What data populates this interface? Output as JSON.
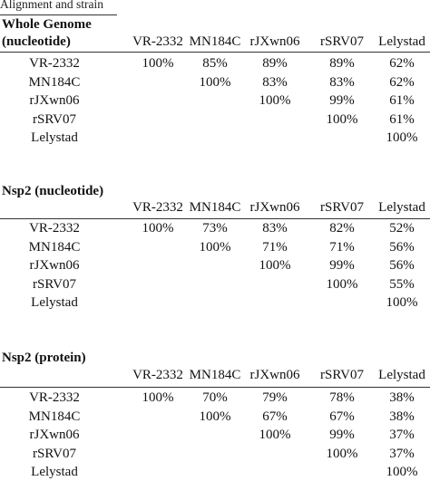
{
  "caption": "Alignment and strain",
  "columns": [
    "VR-2332",
    "MN184C",
    "rJXwn06",
    "rSRV07",
    "Lelystad"
  ],
  "sections": [
    {
      "title_lines": [
        "Whole Genome",
        "(nucleotide)"
      ],
      "rows": [
        {
          "label": "VR-2332",
          "values": [
            "100%",
            "85%",
            "89%",
            "89%",
            "62%"
          ]
        },
        {
          "label": "MN184C",
          "values": [
            "",
            "100%",
            "83%",
            "83%",
            "62%"
          ]
        },
        {
          "label": "rJXwn06",
          "values": [
            "",
            "",
            "100%",
            "99%",
            "61%"
          ]
        },
        {
          "label": "rSRV07",
          "values": [
            "",
            "",
            "",
            "100%",
            "61%"
          ]
        },
        {
          "label": "Lelystad",
          "values": [
            "",
            "",
            "",
            "",
            "100%"
          ]
        }
      ]
    },
    {
      "title_lines": [
        "Nsp2 (nucleotide)"
      ],
      "rows": [
        {
          "label": "VR-2332",
          "values": [
            "100%",
            "73%",
            "83%",
            "82%",
            "52%"
          ]
        },
        {
          "label": "MN184C",
          "values": [
            "",
            "100%",
            "71%",
            "71%",
            "56%"
          ]
        },
        {
          "label": "rJXwn06",
          "values": [
            "",
            "",
            "100%",
            "99%",
            "56%"
          ]
        },
        {
          "label": "rSRV07",
          "values": [
            "",
            "",
            "",
            "100%",
            "55%"
          ]
        },
        {
          "label": "Lelystad",
          "values": [
            "",
            "",
            "",
            "",
            "100%"
          ]
        }
      ]
    },
    {
      "title_lines": [
        "Nsp2 (protein)"
      ],
      "rows": [
        {
          "label": "VR-2332",
          "values": [
            "100%",
            "70%",
            "79%",
            "78%",
            "38%"
          ]
        },
        {
          "label": "MN184C",
          "values": [
            "",
            "100%",
            "67%",
            "67%",
            "38%"
          ]
        },
        {
          "label": "rJXwn06",
          "values": [
            "",
            "",
            "100%",
            "99%",
            "37%"
          ]
        },
        {
          "label": "rSRV07",
          "values": [
            "",
            "",
            "",
            "100%",
            "37%"
          ]
        },
        {
          "label": "Lelystad",
          "values": [
            "",
            "",
            "",
            "",
            "100%"
          ]
        }
      ]
    }
  ]
}
